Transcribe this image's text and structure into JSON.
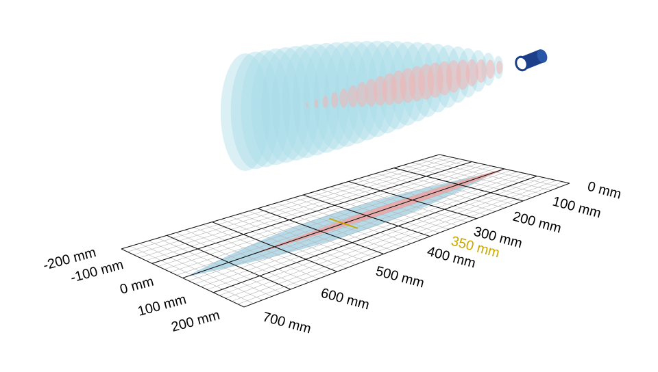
{
  "colors": {
    "wide_beam": "#a8dce8",
    "narrow_beam": "#f2b4b4",
    "wide_footprint": "#a9d3e4",
    "narrow_footprint": "#f0a5a5",
    "grid_minor": "#b4b4b4",
    "grid_major": "#111111",
    "highlight": "#c8a800",
    "sensor": "#1d3f8a"
  },
  "icons": {
    "sensor": "cylindrical-sensor-icon"
  },
  "axes": {
    "distance": {
      "ticks": [
        {
          "value": 0,
          "label": "0 mm"
        },
        {
          "value": 100,
          "label": "100 mm"
        },
        {
          "value": 200,
          "label": "200 mm"
        },
        {
          "value": 300,
          "label": "300 mm"
        },
        {
          "value": 400,
          "label": "400 mm"
        },
        {
          "value": 500,
          "label": "500 mm"
        },
        {
          "value": 600,
          "label": "600 mm"
        },
        {
          "value": 700,
          "label": "700 mm"
        }
      ],
      "highlight": {
        "value": 350,
        "label": "350 mm"
      }
    },
    "lateral": {
      "ticks": [
        {
          "value": -200,
          "label": "-200 mm"
        },
        {
          "value": -100,
          "label": "-100 mm"
        },
        {
          "value": 0,
          "label": "0 mm"
        },
        {
          "value": 100,
          "label": "100 mm"
        },
        {
          "value": 200,
          "label": "200 mm"
        }
      ]
    }
  }
}
